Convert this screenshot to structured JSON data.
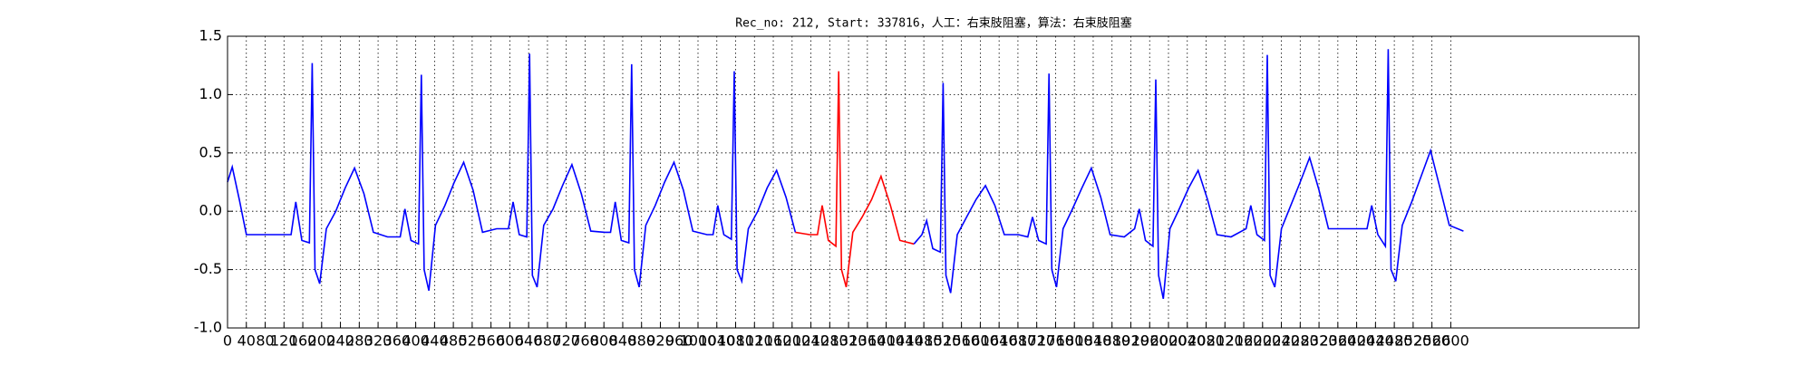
{
  "chart_data": {
    "type": "line",
    "title": "Rec_no: 212, Start: 337816，人工：右束肢阻塞，算法：右束肢阻塞",
    "xlim": [
      0,
      3000
    ],
    "xticks": [
      0,
      40,
      80,
      120,
      160,
      200,
      240,
      280,
      320,
      360,
      400,
      440,
      480,
      520,
      560,
      600,
      640,
      680,
      720,
      760,
      800,
      840,
      880,
      920,
      960,
      1000,
      1040,
      1080,
      1120,
      1160,
      1200,
      1240,
      1280,
      1320,
      1360,
      1400,
      1440,
      1480,
      1520,
      1560,
      1600,
      1640,
      1680,
      1720,
      1760,
      1800,
      1840,
      1880,
      1920,
      1960,
      2000,
      2040,
      2080,
      2120,
      2160,
      2200,
      2240,
      2280,
      2320,
      2360,
      2400,
      2440,
      2480,
      2520,
      2560,
      2600
    ],
    "ylim": [
      -1,
      1.5
    ],
    "yticks": [
      {
        "value": -1,
        "label": "-1.0"
      },
      -0.5,
      {
        "value": 0,
        "label": "0.0"
      },
      0.5,
      {
        "value": 1,
        "label": "1.0"
      },
      1.5
    ],
    "grid": true,
    "series": [
      {
        "color": "#0000ff",
        "x": [
          0,
          10,
          25,
          40,
          135,
          145,
          158,
          174,
          180,
          186,
          196,
          210,
          230,
          250,
          270,
          290,
          310,
          340,
          367,
          377,
          390,
          406,
          412,
          418,
          428,
          442,
          462,
          482,
          502,
          522,
          542,
          572,
          597,
          607,
          620,
          636,
          642,
          648,
          658,
          672,
          692,
          712,
          732,
          752,
          772,
          802,
          814,
          824,
          837,
          853,
          859,
          865,
          875,
          889,
          909,
          929,
          949,
          969,
          989,
          1019,
          1032,
          1042,
          1055,
          1071,
          1077,
          1083,
          1093,
          1107,
          1127,
          1147,
          1167,
          1187,
          1207
        ],
        "values": [
          0.25,
          0.38,
          0.1,
          -0.2,
          -0.2,
          0.08,
          -0.25,
          -0.27,
          1.27,
          -0.5,
          -0.62,
          -0.15,
          0.0,
          0.2,
          0.37,
          0.15,
          -0.18,
          -0.22,
          -0.22,
          0.02,
          -0.25,
          -0.28,
          1.17,
          -0.5,
          -0.68,
          -0.12,
          0.05,
          0.25,
          0.42,
          0.18,
          -0.18,
          -0.15,
          -0.15,
          0.08,
          -0.2,
          -0.22,
          1.35,
          -0.55,
          -0.65,
          -0.12,
          0.02,
          0.22,
          0.4,
          0.15,
          -0.17,
          -0.18,
          -0.18,
          0.08,
          -0.25,
          -0.27,
          1.26,
          -0.5,
          -0.65,
          -0.12,
          0.05,
          0.25,
          0.42,
          0.18,
          -0.17,
          -0.2,
          -0.2,
          0.05,
          -0.2,
          -0.24,
          1.2,
          -0.5,
          -0.6,
          -0.15,
          0.0,
          0.2,
          0.35,
          0.12,
          -0.18
        ]
      },
      {
        "color": "#ff0000",
        "x": [
          1207,
          1237,
          1254,
          1264,
          1277,
          1293,
          1299,
          1305,
          1315,
          1329,
          1349,
          1369,
          1389,
          1409,
          1429,
          1459
        ],
        "values": [
          -0.18,
          -0.2,
          -0.2,
          0.05,
          -0.25,
          -0.3,
          1.2,
          -0.5,
          -0.65,
          -0.18,
          -0.05,
          0.1,
          0.3,
          0.05,
          -0.25,
          -0.28
        ]
      },
      {
        "color": "#0000ff",
        "x": [
          1459,
          1476,
          1486,
          1499,
          1515,
          1521,
          1527,
          1537,
          1551,
          1571,
          1591,
          1611,
          1631,
          1651,
          1681,
          1701,
          1711,
          1724,
          1740,
          1746,
          1752,
          1762,
          1776,
          1796,
          1816,
          1836,
          1856,
          1876,
          1906,
          1928,
          1938,
          1951,
          1967,
          1973,
          1979,
          1989,
          2003,
          2023,
          2043,
          2063,
          2083,
          2103,
          2133,
          2165,
          2175,
          2188,
          2204,
          2210,
          2216,
          2226,
          2240,
          2260,
          2280,
          2300,
          2320,
          2340,
          2370,
          2422,
          2432,
          2445,
          2461,
          2467,
          2473,
          2483,
          2497,
          2517,
          2537,
          2557,
          2577,
          2597,
          2627
        ],
        "values": [
          -0.28,
          -0.2,
          -0.08,
          -0.32,
          -0.35,
          1.1,
          -0.55,
          -0.7,
          -0.2,
          -0.05,
          0.1,
          0.22,
          0.05,
          -0.2,
          -0.2,
          -0.22,
          -0.05,
          -0.25,
          -0.28,
          1.18,
          -0.5,
          -0.65,
          -0.15,
          0.02,
          0.2,
          0.37,
          0.12,
          -0.2,
          -0.22,
          -0.15,
          0.02,
          -0.25,
          -0.3,
          1.13,
          -0.55,
          -0.75,
          -0.15,
          0.02,
          0.2,
          0.35,
          0.1,
          -0.2,
          -0.22,
          -0.15,
          0.05,
          -0.2,
          -0.25,
          1.34,
          -0.55,
          -0.65,
          -0.15,
          0.05,
          0.25,
          0.46,
          0.18,
          -0.15,
          -0.15,
          -0.15,
          0.05,
          -0.2,
          -0.3,
          1.39,
          -0.5,
          -0.6,
          -0.12,
          0.08,
          0.3,
          0.52,
          0.2,
          -0.12,
          -0.17
        ]
      }
    ]
  }
}
